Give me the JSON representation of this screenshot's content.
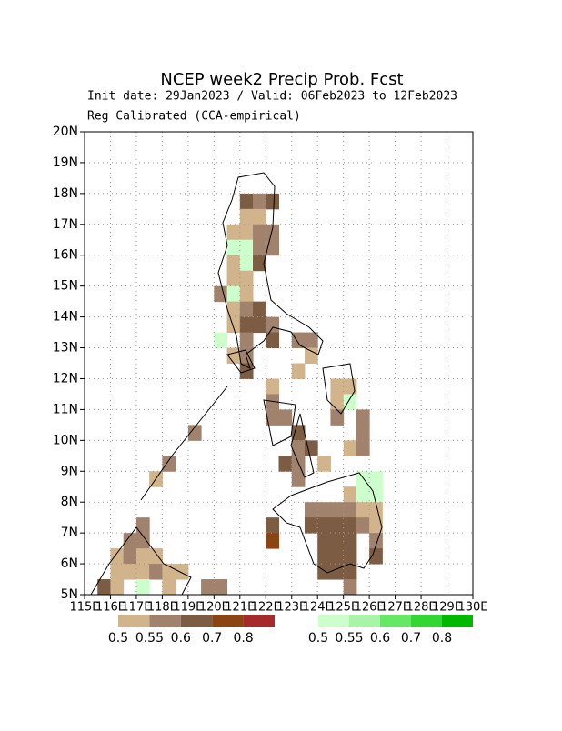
{
  "chart_data": {
    "type": "gridmap",
    "title": "NCEP week2 Precip Prob. Fcst",
    "subtitle": "Init date: 29Jan2023 / Valid: 06Feb2023 to 12Feb2023",
    "note": "Reg Calibrated (CCA-empirical)",
    "xlim": [
      115,
      130
    ],
    "ylim": [
      5,
      20
    ],
    "cell_size": 0.5,
    "grid": true,
    "xticks": [
      {
        "value": 115,
        "label": "115E"
      },
      {
        "value": 116,
        "label": "116E"
      },
      {
        "value": 117,
        "label": "117E"
      },
      {
        "value": 118,
        "label": "118E"
      },
      {
        "value": 119,
        "label": "119E"
      },
      {
        "value": 120,
        "label": "120E"
      },
      {
        "value": 121,
        "label": "121E"
      },
      {
        "value": 122,
        "label": "122E"
      },
      {
        "value": 123,
        "label": "123E"
      },
      {
        "value": 124,
        "label": "124E"
      },
      {
        "value": 125,
        "label": "125E"
      },
      {
        "value": 126,
        "label": "126E"
      },
      {
        "value": 127,
        "label": "127E"
      },
      {
        "value": 128,
        "label": "128E"
      },
      {
        "value": 129,
        "label": "129E"
      },
      {
        "value": 130,
        "label": "130E"
      }
    ],
    "yticks": [
      {
        "value": 5,
        "label": "5N"
      },
      {
        "value": 6,
        "label": "6N"
      },
      {
        "value": 7,
        "label": "7N"
      },
      {
        "value": 8,
        "label": "8N"
      },
      {
        "value": 9,
        "label": "9N"
      },
      {
        "value": 10,
        "label": "10N"
      },
      {
        "value": 11,
        "label": "11N"
      },
      {
        "value": 12,
        "label": "12N"
      },
      {
        "value": 13,
        "label": "13N"
      },
      {
        "value": 14,
        "label": "14N"
      },
      {
        "value": 15,
        "label": "15N"
      },
      {
        "value": 16,
        "label": "16N"
      },
      {
        "value": 17,
        "label": "17N"
      },
      {
        "value": 18,
        "label": "18N"
      },
      {
        "value": 19,
        "label": "19N"
      },
      {
        "value": 20,
        "label": "20N"
      }
    ],
    "levels": [
      0.5,
      0.55,
      0.6,
      0.7,
      0.8
    ],
    "below_colors": [
      "#d2b48c",
      "#a0826d",
      "#7d5c44",
      "#8b4513",
      "#a52a2a"
    ],
    "above_colors": [
      "#ccffcc",
      "#a8f5a8",
      "#66e866",
      "#33d633",
      "#00b800"
    ],
    "cells": [
      {
        "lon": 121,
        "lat": 17.5,
        "cat": "below",
        "prob": 0.6
      },
      {
        "lon": 121.5,
        "lat": 17.5,
        "cat": "below",
        "prob": 0.55
      },
      {
        "lon": 122,
        "lat": 17.5,
        "cat": "below",
        "prob": 0.6
      },
      {
        "lon": 121,
        "lat": 17,
        "cat": "below",
        "prob": 0.5
      },
      {
        "lon": 121.5,
        "lat": 17,
        "cat": "below",
        "prob": 0.5
      },
      {
        "lon": 120.5,
        "lat": 16.5,
        "cat": "below",
        "prob": 0.5
      },
      {
        "lon": 121,
        "lat": 16.5,
        "cat": "below",
        "prob": 0.5
      },
      {
        "lon": 121.5,
        "lat": 16.5,
        "cat": "below",
        "prob": 0.55
      },
      {
        "lon": 122,
        "lat": 16.5,
        "cat": "below",
        "prob": 0.55
      },
      {
        "lon": 120.5,
        "lat": 16,
        "cat": "above",
        "prob": 0.5
      },
      {
        "lon": 121,
        "lat": 16,
        "cat": "above",
        "prob": 0.5
      },
      {
        "lon": 121.5,
        "lat": 16,
        "cat": "below",
        "prob": 0.55
      },
      {
        "lon": 122,
        "lat": 16,
        "cat": "below",
        "prob": 0.55
      },
      {
        "lon": 120.5,
        "lat": 15.5,
        "cat": "below",
        "prob": 0.5
      },
      {
        "lon": 121,
        "lat": 15.5,
        "cat": "above",
        "prob": 0.5
      },
      {
        "lon": 121.5,
        "lat": 15.5,
        "cat": "below",
        "prob": 0.6
      },
      {
        "lon": 120.5,
        "lat": 15,
        "cat": "below",
        "prob": 0.5
      },
      {
        "lon": 121,
        "lat": 15,
        "cat": "below",
        "prob": 0.5
      },
      {
        "lon": 120,
        "lat": 14.5,
        "cat": "below",
        "prob": 0.55
      },
      {
        "lon": 120.5,
        "lat": 14.5,
        "cat": "above",
        "prob": 0.5
      },
      {
        "lon": 121,
        "lat": 14.5,
        "cat": "below",
        "prob": 0.5
      },
      {
        "lon": 120.5,
        "lat": 14,
        "cat": "below",
        "prob": 0.5
      },
      {
        "lon": 121,
        "lat": 14,
        "cat": "below",
        "prob": 0.55
      },
      {
        "lon": 121.5,
        "lat": 14,
        "cat": "below",
        "prob": 0.6
      },
      {
        "lon": 120.5,
        "lat": 13.5,
        "cat": "below",
        "prob": 0.5
      },
      {
        "lon": 121,
        "lat": 13.5,
        "cat": "below",
        "prob": 0.6
      },
      {
        "lon": 121.5,
        "lat": 13.5,
        "cat": "below",
        "prob": 0.6
      },
      {
        "lon": 122,
        "lat": 13.5,
        "cat": "below",
        "prob": 0.55
      },
      {
        "lon": 120,
        "lat": 13,
        "cat": "above",
        "prob": 0.5
      },
      {
        "lon": 121,
        "lat": 13,
        "cat": "below",
        "prob": 0.55
      },
      {
        "lon": 122,
        "lat": 13,
        "cat": "below",
        "prob": 0.6
      },
      {
        "lon": 123,
        "lat": 13,
        "cat": "below",
        "prob": 0.55
      },
      {
        "lon": 123.5,
        "lat": 13,
        "cat": "below",
        "prob": 0.55
      },
      {
        "lon": 120.5,
        "lat": 12.5,
        "cat": "below",
        "prob": 0.5
      },
      {
        "lon": 121,
        "lat": 12.5,
        "cat": "below",
        "prob": 0.55
      },
      {
        "lon": 123.5,
        "lat": 12.5,
        "cat": "below",
        "prob": 0.5
      },
      {
        "lon": 121,
        "lat": 12,
        "cat": "below",
        "prob": 0.6
      },
      {
        "lon": 123,
        "lat": 12,
        "cat": "below",
        "prob": 0.5
      },
      {
        "lon": 122,
        "lat": 11.5,
        "cat": "below",
        "prob": 0.5
      },
      {
        "lon": 124.5,
        "lat": 11.5,
        "cat": "below",
        "prob": 0.5
      },
      {
        "lon": 125,
        "lat": 11.5,
        "cat": "below",
        "prob": 0.5
      },
      {
        "lon": 122,
        "lat": 11,
        "cat": "below",
        "prob": 0.55
      },
      {
        "lon": 124.5,
        "lat": 11,
        "cat": "below",
        "prob": 0.5
      },
      {
        "lon": 125,
        "lat": 11,
        "cat": "above",
        "prob": 0.5
      },
      {
        "lon": 122,
        "lat": 10.5,
        "cat": "below",
        "prob": 0.55
      },
      {
        "lon": 122.5,
        "lat": 10.5,
        "cat": "below",
        "prob": 0.55
      },
      {
        "lon": 124.5,
        "lat": 10.5,
        "cat": "below",
        "prob": 0.55
      },
      {
        "lon": 125.5,
        "lat": 10.5,
        "cat": "below",
        "prob": 0.55
      },
      {
        "lon": 123,
        "lat": 10,
        "cat": "below",
        "prob": 0.6
      },
      {
        "lon": 125.5,
        "lat": 10,
        "cat": "below",
        "prob": 0.55
      },
      {
        "lon": 123,
        "lat": 9.5,
        "cat": "below",
        "prob": 0.55
      },
      {
        "lon": 123.5,
        "lat": 9.5,
        "cat": "below",
        "prob": 0.6
      },
      {
        "lon": 125,
        "lat": 9.5,
        "cat": "below",
        "prob": 0.5
      },
      {
        "lon": 125.5,
        "lat": 9.5,
        "cat": "below",
        "prob": 0.55
      },
      {
        "lon": 122.5,
        "lat": 9,
        "cat": "below",
        "prob": 0.6
      },
      {
        "lon": 123,
        "lat": 9,
        "cat": "below",
        "prob": 0.55
      },
      {
        "lon": 124,
        "lat": 9,
        "cat": "below",
        "prob": 0.5
      },
      {
        "lon": 123,
        "lat": 8.5,
        "cat": "below",
        "prob": 0.55
      },
      {
        "lon": 125.5,
        "lat": 8.5,
        "cat": "above",
        "prob": 0.5
      },
      {
        "lon": 126,
        "lat": 8.5,
        "cat": "above",
        "prob": 0.5
      },
      {
        "lon": 125,
        "lat": 8,
        "cat": "below",
        "prob": 0.5
      },
      {
        "lon": 125.5,
        "lat": 8,
        "cat": "above",
        "prob": 0.5
      },
      {
        "lon": 126,
        "lat": 8,
        "cat": "above",
        "prob": 0.5
      },
      {
        "lon": 123.5,
        "lat": 7.5,
        "cat": "below",
        "prob": 0.55
      },
      {
        "lon": 124,
        "lat": 7.5,
        "cat": "below",
        "prob": 0.55
      },
      {
        "lon": 124.5,
        "lat": 7.5,
        "cat": "below",
        "prob": 0.55
      },
      {
        "lon": 125,
        "lat": 7.5,
        "cat": "below",
        "prob": 0.55
      },
      {
        "lon": 125.5,
        "lat": 7.5,
        "cat": "below",
        "prob": 0.5
      },
      {
        "lon": 126,
        "lat": 7.5,
        "cat": "below",
        "prob": 0.5
      },
      {
        "lon": 122,
        "lat": 7,
        "cat": "below",
        "prob": 0.6
      },
      {
        "lon": 123.5,
        "lat": 7,
        "cat": "below",
        "prob": 0.6
      },
      {
        "lon": 124,
        "lat": 7,
        "cat": "below",
        "prob": 0.6
      },
      {
        "lon": 124.5,
        "lat": 7,
        "cat": "below",
        "prob": 0.6
      },
      {
        "lon": 125,
        "lat": 7,
        "cat": "below",
        "prob": 0.6
      },
      {
        "lon": 125.5,
        "lat": 7,
        "cat": "below",
        "prob": 0.55
      },
      {
        "lon": 126,
        "lat": 7,
        "cat": "below",
        "prob": 0.5
      },
      {
        "lon": 122,
        "lat": 6.5,
        "cat": "below",
        "prob": 0.7
      },
      {
        "lon": 124,
        "lat": 6.5,
        "cat": "below",
        "prob": 0.6
      },
      {
        "lon": 124.5,
        "lat": 6.5,
        "cat": "below",
        "prob": 0.6
      },
      {
        "lon": 125,
        "lat": 6.5,
        "cat": "below",
        "prob": 0.6
      },
      {
        "lon": 126,
        "lat": 6.5,
        "cat": "below",
        "prob": 0.55
      },
      {
        "lon": 124,
        "lat": 6,
        "cat": "below",
        "prob": 0.6
      },
      {
        "lon": 124.5,
        "lat": 6,
        "cat": "below",
        "prob": 0.6
      },
      {
        "lon": 125,
        "lat": 6,
        "cat": "below",
        "prob": 0.6
      },
      {
        "lon": 126,
        "lat": 6,
        "cat": "below",
        "prob": 0.6
      },
      {
        "lon": 124,
        "lat": 5.5,
        "cat": "below",
        "prob": 0.6
      },
      {
        "lon": 124.5,
        "lat": 5.5,
        "cat": "below",
        "prob": 0.6
      },
      {
        "lon": 125,
        "lat": 5.5,
        "cat": "below",
        "prob": 0.6
      },
      {
        "lon": 125,
        "lat": 5,
        "cat": "below",
        "prob": 0.55
      },
      {
        "lon": 119,
        "lat": 10,
        "cat": "below",
        "prob": 0.55
      },
      {
        "lon": 118,
        "lat": 9,
        "cat": "below",
        "prob": 0.55
      },
      {
        "lon": 117.5,
        "lat": 8.5,
        "cat": "below",
        "prob": 0.5
      },
      {
        "lon": 117,
        "lat": 7,
        "cat": "below",
        "prob": 0.55
      },
      {
        "lon": 116.5,
        "lat": 6.5,
        "cat": "below",
        "prob": 0.55
      },
      {
        "lon": 117,
        "lat": 6.5,
        "cat": "below",
        "prob": 0.55
      },
      {
        "lon": 116,
        "lat": 6,
        "cat": "below",
        "prob": 0.5
      },
      {
        "lon": 116.5,
        "lat": 6,
        "cat": "below",
        "prob": 0.55
      },
      {
        "lon": 117,
        "lat": 6,
        "cat": "below",
        "prob": 0.5
      },
      {
        "lon": 117.5,
        "lat": 6,
        "cat": "below",
        "prob": 0.5
      },
      {
        "lon": 116,
        "lat": 5.5,
        "cat": "below",
        "prob": 0.5
      },
      {
        "lon": 116.5,
        "lat": 5.5,
        "cat": "below",
        "prob": 0.5
      },
      {
        "lon": 117,
        "lat": 5.5,
        "cat": "below",
        "prob": 0.5
      },
      {
        "lon": 117.5,
        "lat": 5.5,
        "cat": "below",
        "prob": 0.55
      },
      {
        "lon": 118,
        "lat": 5.5,
        "cat": "below",
        "prob": 0.5
      },
      {
        "lon": 118.5,
        "lat": 5.5,
        "cat": "below",
        "prob": 0.5
      },
      {
        "lon": 115.5,
        "lat": 5,
        "cat": "below",
        "prob": 0.6
      },
      {
        "lon": 116,
        "lat": 5,
        "cat": "below",
        "prob": 0.5
      },
      {
        "lon": 117,
        "lat": 5,
        "cat": "above",
        "prob": 0.5
      },
      {
        "lon": 118,
        "lat": 5,
        "cat": "below",
        "prob": 0.5
      },
      {
        "lon": 119.5,
        "lat": 5,
        "cat": "below",
        "prob": 0.55
      },
      {
        "lon": 120,
        "lat": 5,
        "cat": "below",
        "prob": 0.55
      }
    ]
  }
}
